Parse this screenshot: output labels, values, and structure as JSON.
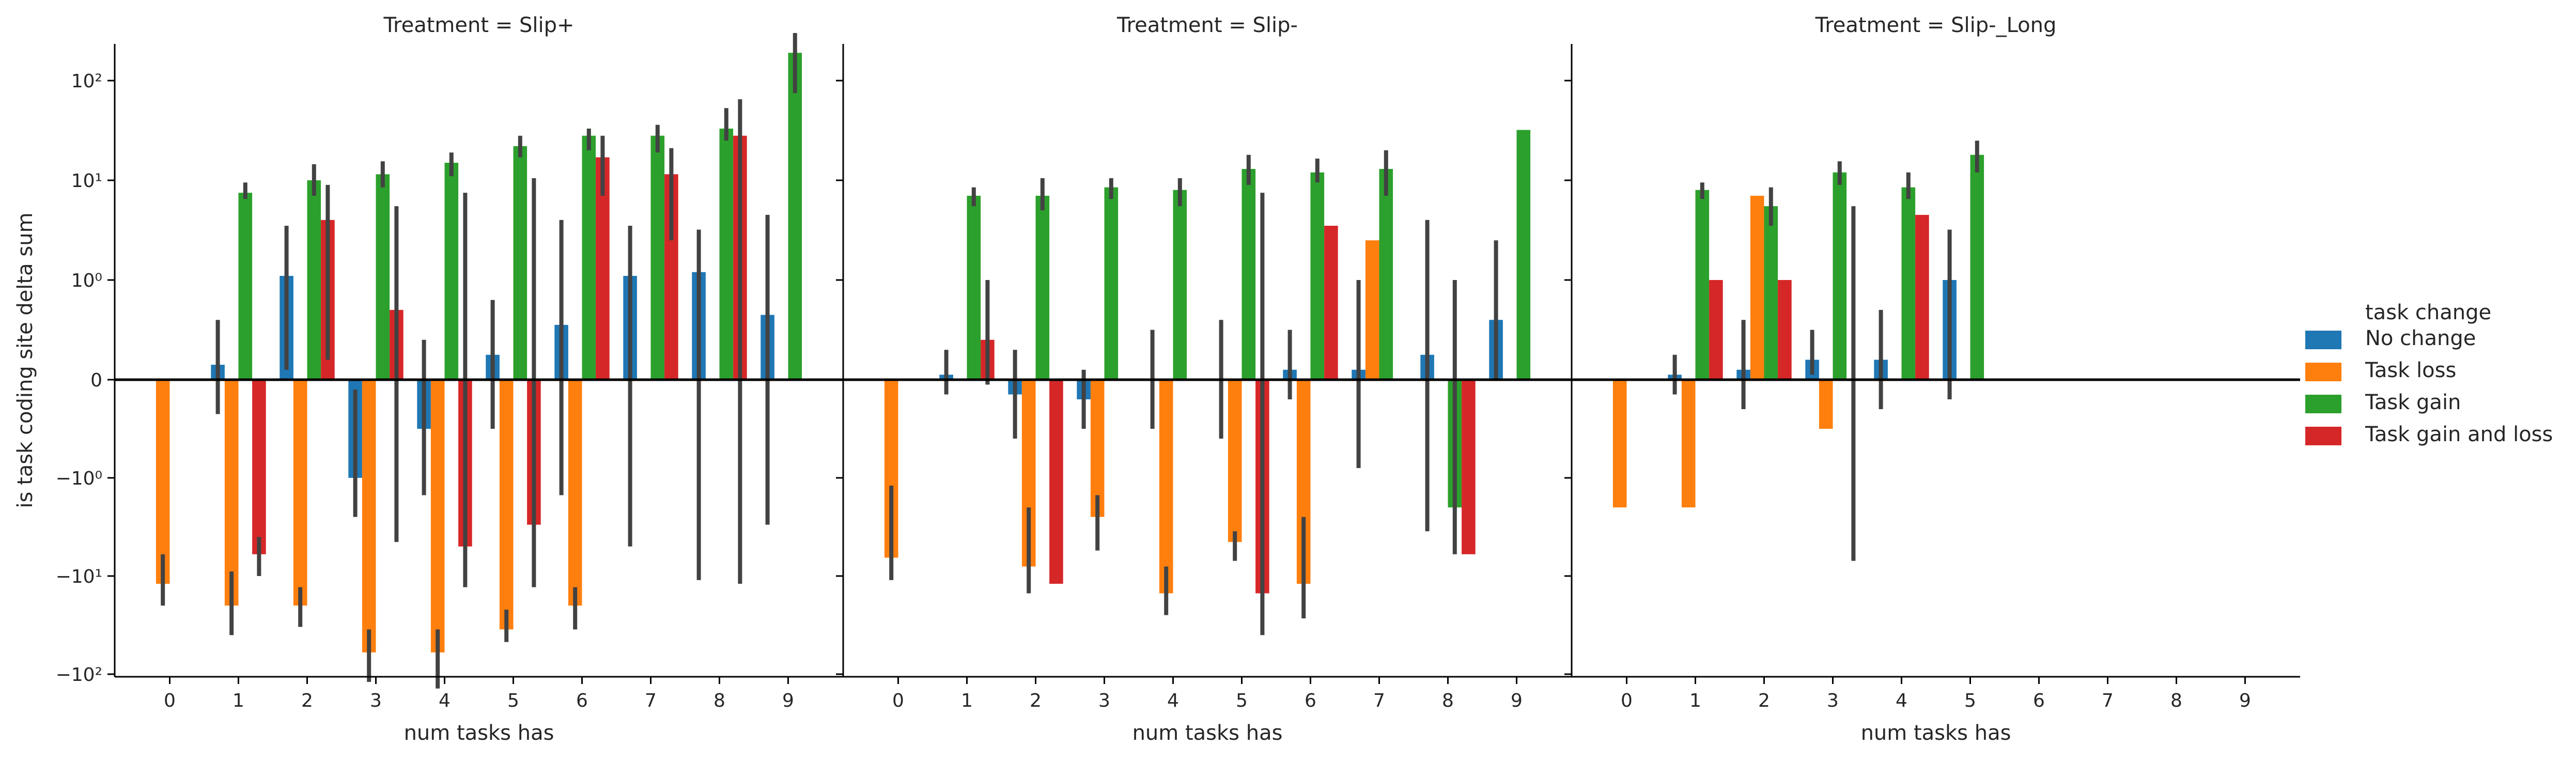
{
  "chart_data": {
    "type": "bar",
    "y_scale": "symlog",
    "ylim": [
      -250,
      300
    ],
    "ylabel": "is task coding site delta sum",
    "y_tick_labels": [
      {
        "value": 100,
        "label": "10²"
      },
      {
        "value": 10,
        "label": "10¹"
      },
      {
        "value": 1,
        "label": "10⁰"
      },
      {
        "value": 0,
        "label": "0"
      },
      {
        "value": -1,
        "label": "−10⁰"
      },
      {
        "value": -10,
        "label": "−10¹"
      },
      {
        "value": -100,
        "label": "−10²"
      }
    ],
    "categories": [
      "0",
      "1",
      "2",
      "3",
      "4",
      "5",
      "6",
      "7",
      "8",
      "9"
    ],
    "legend": {
      "title": "task change",
      "placement": "right",
      "entries": [
        {
          "name": "No change",
          "color": "#1f77b4"
        },
        {
          "name": "Task loss",
          "color": "#ff7f0e"
        },
        {
          "name": "Task gain",
          "color": "#2ca02c"
        },
        {
          "name": "Task gain and loss",
          "color": "#d62728"
        }
      ]
    },
    "zero_line": true,
    "panels": [
      {
        "title": "Treatment = Slip+",
        "xlabel": "num tasks has",
        "series": [
          {
            "name": "No change",
            "values": [
              null,
              0.15,
              1.1,
              -1.0,
              -0.5,
              0.25,
              0.55,
              1.1,
              1.2,
              0.65
            ],
            "ci": [
              null,
              [
                -0.35,
                0.6
              ],
              [
                0.1,
                3.5
              ],
              [
                -2.5,
                -0.1
              ],
              [
                -1.5,
                0.4
              ],
              [
                -0.5,
                0.8
              ],
              [
                -1.5,
                4.0
              ],
              [
                -5.0,
                3.5
              ],
              [
                -11.0,
                3.2
              ],
              [
                -3.0,
                4.5
              ]
            ]
          },
          {
            "name": "Task loss",
            "values": [
              -12.0,
              -20.0,
              -20.0,
              -60.0,
              -60.0,
              -35.0,
              -20.0,
              null,
              null,
              null
            ],
            "ci": [
              [
                -20.0,
                -6.0
              ],
              [
                -40.0,
                -9.0
              ],
              [
                -33.0,
                -13.0
              ],
              [
                -120.0,
                -35.0
              ],
              [
                -140.0,
                -35.0
              ],
              [
                -47.0,
                -22.0
              ],
              [
                -35.0,
                -13.0
              ],
              null,
              null,
              null
            ]
          },
          {
            "name": "Task gain",
            "values": [
              null,
              7.5,
              10.0,
              11.5,
              15.0,
              22.0,
              28.0,
              28.0,
              33.0,
              190.0
            ],
            "ci": [
              null,
              [
                6.5,
                9.5
              ],
              [
                7.0,
                14.5
              ],
              [
                8.5,
                15.5
              ],
              [
                11.0,
                19.0
              ],
              [
                17.0,
                28.0
              ],
              [
                20.0,
                33.0
              ],
              [
                19.0,
                36.0
              ],
              [
                25.0,
                53.0
              ],
              [
                75.0,
                300.0
              ]
            ]
          },
          {
            "name": "Task gain and loss",
            "values": [
              null,
              -6.0,
              4.0,
              0.7,
              -5.0,
              -3.0,
              17.0,
              11.5,
              28.0,
              null
            ],
            "ci": [
              null,
              [
                -10.0,
                -4.0
              ],
              [
                0.2,
                9.0
              ],
              [
                -4.5,
                5.5
              ],
              [
                -13.0,
                7.5
              ],
              [
                -13.0,
                10.5
              ],
              [
                7.0,
                28.0
              ],
              [
                2.5,
                21.0
              ],
              [
                -12.0,
                65.0
              ],
              null
            ]
          }
        ]
      },
      {
        "title": "Treatment = Slip-",
        "xlabel": "num tasks has",
        "series": [
          {
            "name": "No change",
            "values": [
              null,
              0.05,
              -0.15,
              -0.2,
              null,
              null,
              0.1,
              0.1,
              0.25,
              0.6
            ],
            "ci": [
              null,
              [
                -0.15,
                0.3
              ],
              [
                -0.6,
                0.3
              ],
              [
                -0.5,
                0.1
              ],
              [
                -0.5,
                0.5
              ],
              [
                -0.6,
                0.6
              ],
              [
                -0.2,
                0.5
              ],
              [
                -0.9,
                1.0
              ],
              [
                -3.5,
                4.0
              ],
              [
                0.0,
                2.5
              ]
            ]
          },
          {
            "name": "Task loss",
            "values": [
              -6.5,
              null,
              -8.0,
              -2.5,
              -15.0,
              -4.5,
              -12.0,
              2.5,
              null,
              null
            ],
            "ci": [
              [
                -11.0,
                -1.2
              ],
              null,
              [
                -15.0,
                -2.0
              ],
              [
                -5.5,
                -1.5
              ],
              [
                -25.0,
                -8.0
              ],
              [
                -7.0,
                -3.5
              ],
              [
                -27.0,
                -2.5
              ],
              null,
              null,
              null
            ]
          },
          {
            "name": "Task gain",
            "values": [
              null,
              7.0,
              7.0,
              8.5,
              8.0,
              13.0,
              12.0,
              13.0,
              -2.0,
              32.0
            ],
            "ci": [
              null,
              [
                5.5,
                8.5
              ],
              [
                5.0,
                10.5
              ],
              [
                6.5,
                10.5
              ],
              [
                5.5,
                10.5
              ],
              [
                9.0,
                18.0
              ],
              [
                9.5,
                16.5
              ],
              [
                7.0,
                20.0
              ],
              [
                -6.0,
                1.0
              ],
              null
            ]
          },
          {
            "name": "Task gain and loss",
            "values": [
              null,
              0.4,
              -12.0,
              null,
              null,
              -15.0,
              3.5,
              null,
              -6.0,
              null
            ],
            "ci": [
              null,
              [
                -0.05,
                1.0
              ],
              null,
              null,
              null,
              [
                -40.0,
                7.5
              ],
              null,
              null,
              null,
              null
            ]
          }
        ]
      },
      {
        "title": "Treatment = Slip-_Long",
        "xlabel": "num tasks has",
        "series": [
          {
            "name": "No change",
            "values": [
              null,
              0.05,
              0.1,
              0.2,
              0.2,
              1.0,
              null,
              null,
              null,
              null
            ],
            "ci": [
              null,
              [
                -0.15,
                0.25
              ],
              [
                -0.3,
                0.6
              ],
              [
                0.05,
                0.5
              ],
              [
                -0.3,
                0.7
              ],
              [
                -0.2,
                3.2
              ],
              null,
              null,
              null,
              null
            ]
          },
          {
            "name": "Task loss",
            "values": [
              -2.0,
              -2.0,
              7.0,
              -0.5,
              null,
              null,
              null,
              null,
              null,
              null
            ],
            "ci": [
              null,
              null,
              null,
              null,
              null,
              null,
              null,
              null,
              null,
              null
            ]
          },
          {
            "name": "Task gain",
            "values": [
              null,
              8.0,
              5.5,
              12.0,
              8.5,
              18.0,
              null,
              null,
              null,
              null
            ],
            "ci": [
              null,
              [
                6.5,
                9.5
              ],
              [
                3.5,
                8.5
              ],
              [
                9.0,
                15.5
              ],
              [
                6.5,
                12.0
              ],
              [
                12.0,
                25.0
              ],
              null,
              null,
              null,
              null
            ]
          },
          {
            "name": "Task gain and loss",
            "values": [
              null,
              1.0,
              1.0,
              null,
              4.5,
              null,
              null,
              null,
              null,
              null
            ],
            "ci": [
              null,
              null,
              null,
              [
                -7.0,
                5.5
              ],
              null,
              null,
              null,
              null,
              null,
              null
            ]
          }
        ]
      }
    ]
  }
}
